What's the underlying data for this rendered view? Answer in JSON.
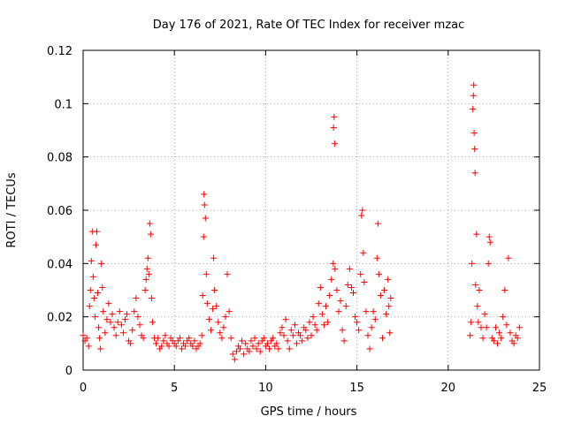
{
  "chart_data": {
    "type": "scatter",
    "title": "Day 176 of 2021, Rate Of TEC Index for receiver mzac",
    "xlabel": "GPS time / hours",
    "ylabel": "ROTI / TECUs",
    "xlim": [
      0,
      25
    ],
    "ylim": [
      0,
      0.12
    ],
    "xticks": [
      0,
      5,
      10,
      15,
      20,
      25
    ],
    "yticks": [
      0,
      0.02,
      0.04,
      0.06,
      0.08,
      0.1,
      0.12
    ],
    "xtick_labels": [
      "0",
      "5",
      "10",
      "15",
      "20",
      "25"
    ],
    "ytick_labels": [
      "0",
      "0.02",
      "0.04",
      "0.06",
      "0.08",
      "0.1",
      "0.12"
    ],
    "grid": true,
    "marker": "+",
    "color": "#ff0000",
    "series": [
      {
        "points": [
          [
            0.0,
            0.013
          ],
          [
            0.1,
            0.011
          ],
          [
            0.2,
            0.012
          ],
          [
            0.3,
            0.009
          ],
          [
            0.35,
            0.024
          ],
          [
            0.4,
            0.03
          ],
          [
            0.45,
            0.041
          ],
          [
            0.5,
            0.052
          ],
          [
            0.55,
            0.035
          ],
          [
            0.6,
            0.027
          ],
          [
            0.65,
            0.02
          ],
          [
            0.7,
            0.047
          ],
          [
            0.75,
            0.052
          ],
          [
            0.8,
            0.029
          ],
          [
            0.85,
            0.016
          ],
          [
            0.9,
            0.012
          ],
          [
            0.95,
            0.008
          ],
          [
            1.0,
            0.04
          ],
          [
            1.05,
            0.031
          ],
          [
            1.1,
            0.022
          ],
          [
            1.2,
            0.014
          ],
          [
            1.3,
            0.019
          ],
          [
            1.4,
            0.025
          ],
          [
            1.5,
            0.018
          ],
          [
            1.6,
            0.021
          ],
          [
            1.7,
            0.016
          ],
          [
            1.8,
            0.013
          ],
          [
            1.9,
            0.018
          ],
          [
            2.0,
            0.022
          ],
          [
            2.1,
            0.017
          ],
          [
            2.2,
            0.014
          ],
          [
            2.3,
            0.019
          ],
          [
            2.4,
            0.021
          ],
          [
            2.5,
            0.011
          ],
          [
            2.6,
            0.01
          ],
          [
            2.7,
            0.015
          ],
          [
            2.8,
            0.022
          ],
          [
            2.9,
            0.027
          ],
          [
            3.0,
            0.02
          ],
          [
            3.1,
            0.017
          ],
          [
            3.2,
            0.013
          ],
          [
            3.3,
            0.012
          ],
          [
            3.4,
            0.03
          ],
          [
            3.45,
            0.034
          ],
          [
            3.5,
            0.038
          ],
          [
            3.55,
            0.042
          ],
          [
            3.6,
            0.036
          ],
          [
            3.65,
            0.055
          ],
          [
            3.7,
            0.051
          ],
          [
            3.75,
            0.027
          ],
          [
            3.8,
            0.018
          ],
          [
            3.9,
            0.012
          ],
          [
            4.0,
            0.01
          ],
          [
            4.1,
            0.012
          ],
          [
            4.2,
            0.008
          ],
          [
            4.3,
            0.009
          ],
          [
            4.4,
            0.011
          ],
          [
            4.5,
            0.013
          ],
          [
            4.6,
            0.01
          ],
          [
            4.7,
            0.009
          ],
          [
            4.8,
            0.012
          ],
          [
            4.9,
            0.011
          ],
          [
            5.0,
            0.01
          ],
          [
            5.1,
            0.009
          ],
          [
            5.2,
            0.011
          ],
          [
            5.3,
            0.012
          ],
          [
            5.4,
            0.008
          ],
          [
            5.5,
            0.01
          ],
          [
            5.6,
            0.009
          ],
          [
            5.7,
            0.011
          ],
          [
            5.8,
            0.012
          ],
          [
            5.9,
            0.01
          ],
          [
            6.0,
            0.009
          ],
          [
            6.1,
            0.011
          ],
          [
            6.2,
            0.008
          ],
          [
            6.3,
            0.009
          ],
          [
            6.4,
            0.01
          ],
          [
            6.5,
            0.013
          ],
          [
            6.55,
            0.028
          ],
          [
            6.6,
            0.05
          ],
          [
            6.62,
            0.066
          ],
          [
            6.65,
            0.062
          ],
          [
            6.7,
            0.057
          ],
          [
            6.75,
            0.036
          ],
          [
            6.8,
            0.025
          ],
          [
            6.9,
            0.019
          ],
          [
            7.0,
            0.015
          ],
          [
            7.1,
            0.023
          ],
          [
            7.15,
            0.042
          ],
          [
            7.2,
            0.03
          ],
          [
            7.3,
            0.024
          ],
          [
            7.4,
            0.018
          ],
          [
            7.5,
            0.014
          ],
          [
            7.6,
            0.012
          ],
          [
            7.7,
            0.016
          ],
          [
            7.8,
            0.02
          ],
          [
            7.9,
            0.036
          ],
          [
            8.0,
            0.022
          ],
          [
            8.1,
            0.012
          ],
          [
            8.2,
            0.006
          ],
          [
            8.3,
            0.004
          ],
          [
            8.4,
            0.007
          ],
          [
            8.5,
            0.009
          ],
          [
            8.6,
            0.008
          ],
          [
            8.7,
            0.011
          ],
          [
            8.8,
            0.006
          ],
          [
            8.9,
            0.01
          ],
          [
            9.0,
            0.008
          ],
          [
            9.1,
            0.007
          ],
          [
            9.2,
            0.011
          ],
          [
            9.3,
            0.009
          ],
          [
            9.4,
            0.012
          ],
          [
            9.5,
            0.008
          ],
          [
            9.6,
            0.01
          ],
          [
            9.7,
            0.007
          ],
          [
            9.8,
            0.011
          ],
          [
            9.9,
            0.012
          ],
          [
            10.0,
            0.009
          ],
          [
            10.1,
            0.01
          ],
          [
            10.2,
            0.008
          ],
          [
            10.3,
            0.011
          ],
          [
            10.4,
            0.012
          ],
          [
            10.5,
            0.009
          ],
          [
            10.6,
            0.01
          ],
          [
            10.7,
            0.008
          ],
          [
            10.8,
            0.014
          ],
          [
            10.9,
            0.016
          ],
          [
            11.0,
            0.013
          ],
          [
            11.1,
            0.019
          ],
          [
            11.2,
            0.011
          ],
          [
            11.3,
            0.008
          ],
          [
            11.4,
            0.015
          ],
          [
            11.5,
            0.013
          ],
          [
            11.6,
            0.017
          ],
          [
            11.7,
            0.01
          ],
          [
            11.8,
            0.014
          ],
          [
            11.9,
            0.013
          ],
          [
            12.0,
            0.011
          ],
          [
            12.1,
            0.016
          ],
          [
            12.2,
            0.015
          ],
          [
            12.3,
            0.012
          ],
          [
            12.4,
            0.018
          ],
          [
            12.5,
            0.013
          ],
          [
            12.6,
            0.02
          ],
          [
            12.7,
            0.017
          ],
          [
            12.8,
            0.015
          ],
          [
            12.9,
            0.025
          ],
          [
            13.0,
            0.031
          ],
          [
            13.1,
            0.021
          ],
          [
            13.2,
            0.017
          ],
          [
            13.3,
            0.024
          ],
          [
            13.4,
            0.018
          ],
          [
            13.5,
            0.028
          ],
          [
            13.6,
            0.034
          ],
          [
            13.7,
            0.04
          ],
          [
            13.72,
            0.091
          ],
          [
            13.75,
            0.095
          ],
          [
            13.78,
            0.085
          ],
          [
            13.8,
            0.038
          ],
          [
            13.9,
            0.03
          ],
          [
            14.0,
            0.022
          ],
          [
            14.1,
            0.026
          ],
          [
            14.2,
            0.015
          ],
          [
            14.3,
            0.011
          ],
          [
            14.4,
            0.024
          ],
          [
            14.5,
            0.032
          ],
          [
            14.6,
            0.038
          ],
          [
            14.7,
            0.031
          ],
          [
            14.8,
            0.029
          ],
          [
            14.9,
            0.02
          ],
          [
            15.0,
            0.018
          ],
          [
            15.1,
            0.015
          ],
          [
            15.2,
            0.036
          ],
          [
            15.25,
            0.058
          ],
          [
            15.3,
            0.06
          ],
          [
            15.35,
            0.044
          ],
          [
            15.4,
            0.033
          ],
          [
            15.5,
            0.022
          ],
          [
            15.6,
            0.013
          ],
          [
            15.7,
            0.008
          ],
          [
            15.8,
            0.016
          ],
          [
            15.9,
            0.022
          ],
          [
            16.0,
            0.019
          ],
          [
            16.1,
            0.042
          ],
          [
            16.15,
            0.055
          ],
          [
            16.2,
            0.036
          ],
          [
            16.3,
            0.028
          ],
          [
            16.4,
            0.012
          ],
          [
            16.5,
            0.03
          ],
          [
            16.6,
            0.021
          ],
          [
            16.7,
            0.034
          ],
          [
            16.75,
            0.024
          ],
          [
            16.8,
            0.014
          ],
          [
            16.85,
            0.027
          ],
          [
            21.2,
            0.013
          ],
          [
            21.25,
            0.018
          ],
          [
            21.3,
            0.04
          ],
          [
            21.35,
            0.098
          ],
          [
            21.38,
            0.103
          ],
          [
            21.4,
            0.107
          ],
          [
            21.42,
            0.089
          ],
          [
            21.45,
            0.083
          ],
          [
            21.47,
            0.074
          ],
          [
            21.5,
            0.032
          ],
          [
            21.55,
            0.051
          ],
          [
            21.6,
            0.024
          ],
          [
            21.65,
            0.018
          ],
          [
            21.7,
            0.03
          ],
          [
            21.8,
            0.016
          ],
          [
            21.9,
            0.012
          ],
          [
            22.0,
            0.021
          ],
          [
            22.1,
            0.016
          ],
          [
            22.2,
            0.04
          ],
          [
            22.25,
            0.05
          ],
          [
            22.3,
            0.048
          ],
          [
            22.4,
            0.012
          ],
          [
            22.5,
            0.011
          ],
          [
            22.6,
            0.016
          ],
          [
            22.7,
            0.01
          ],
          [
            22.8,
            0.014
          ],
          [
            22.9,
            0.012
          ],
          [
            23.0,
            0.02
          ],
          [
            23.1,
            0.03
          ],
          [
            23.2,
            0.017
          ],
          [
            23.3,
            0.042
          ],
          [
            23.4,
            0.014
          ],
          [
            23.5,
            0.011
          ],
          [
            23.6,
            0.01
          ],
          [
            23.7,
            0.013
          ],
          [
            23.8,
            0.012
          ],
          [
            23.9,
            0.016
          ]
        ]
      }
    ]
  }
}
